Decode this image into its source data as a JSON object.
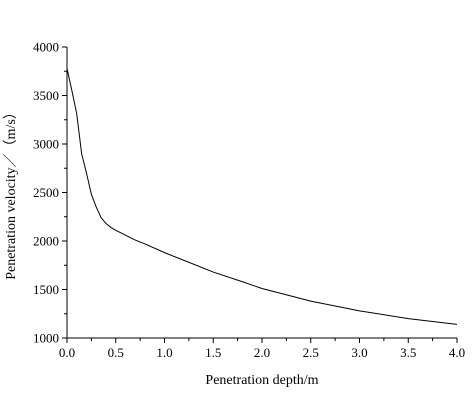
{
  "chart_data": {
    "type": "line",
    "title": "",
    "xlabel": "Penetration depth/m",
    "ylabel": "Penetration velocity／（m/s）",
    "xlim": [
      0.0,
      4.0
    ],
    "ylim": [
      1000,
      4000
    ],
    "x_ticks": [
      "0.0",
      "0.5",
      "1.0",
      "1.5",
      "2.0",
      "2.5",
      "3.0",
      "3.5",
      "4.0"
    ],
    "y_ticks": [
      "1000",
      "1500",
      "2000",
      "2500",
      "3000",
      "3500",
      "4000"
    ],
    "grid": false,
    "legend": "none",
    "line_color": "#000000",
    "series": [
      {
        "x": [
          0.0,
          0.05,
          0.1,
          0.15,
          0.2,
          0.25,
          0.3,
          0.35,
          0.4,
          0.45,
          0.5,
          0.6,
          0.7,
          0.8,
          1.0,
          1.2,
          1.5,
          1.8,
          2.0,
          2.5,
          3.0,
          3.5,
          4.0
        ],
        "y": [
          3780,
          3550,
          3310,
          2900,
          2700,
          2480,
          2350,
          2240,
          2180,
          2140,
          2110,
          2060,
          2010,
          1970,
          1880,
          1800,
          1680,
          1580,
          1510,
          1380,
          1280,
          1200,
          1140
        ]
      }
    ]
  }
}
